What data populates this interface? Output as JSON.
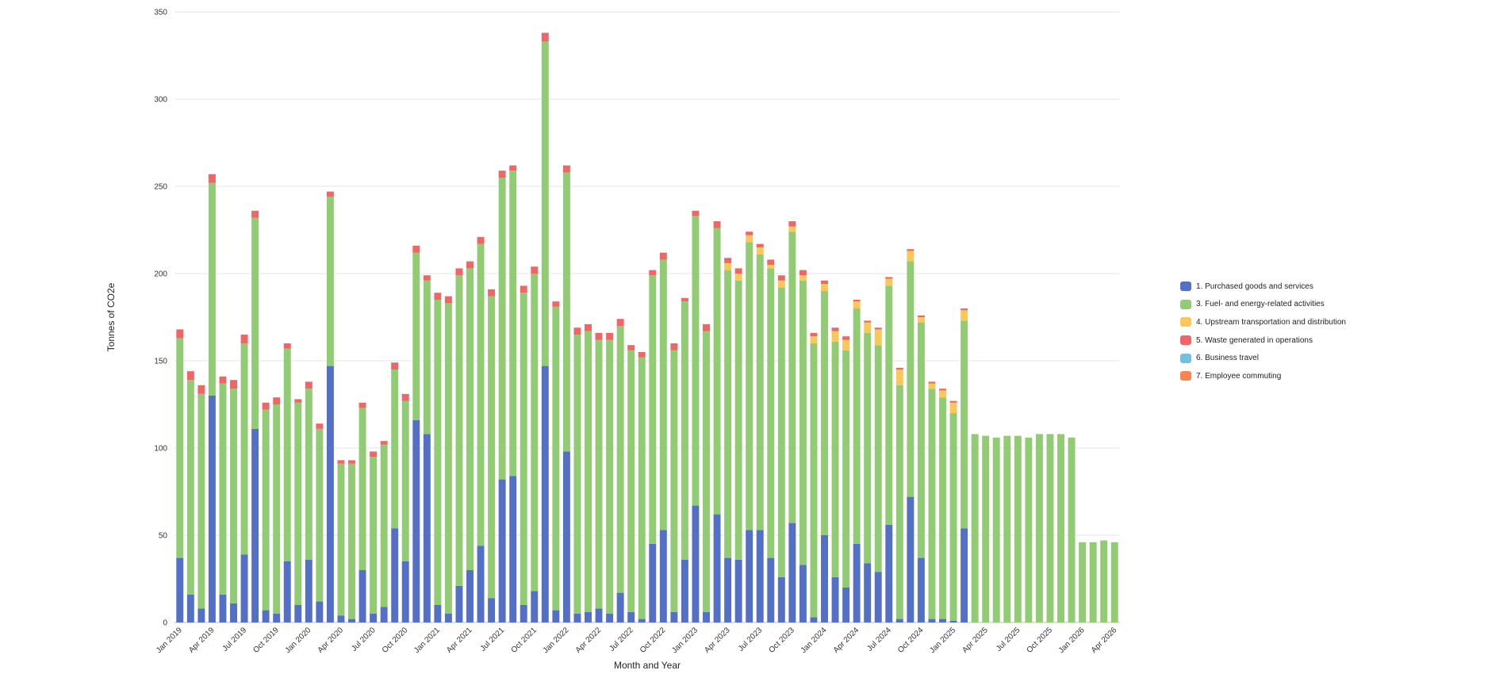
{
  "chart_data": {
    "type": "bar",
    "stacked": true,
    "title": "",
    "xlabel": "Month and Year",
    "ylabel": "Tonnes of CO2e",
    "ylim": [
      0,
      350
    ],
    "yticks": [
      0,
      50,
      100,
      150,
      200,
      250,
      300,
      350
    ],
    "grid": true,
    "legend_position": "right",
    "categories": [
      "Jan 2019",
      "Feb 2019",
      "Mar 2019",
      "Apr 2019",
      "May 2019",
      "Jun 2019",
      "Jul 2019",
      "Aug 2019",
      "Sep 2019",
      "Oct 2019",
      "Nov 2019",
      "Dec 2019",
      "Jan 2020",
      "Feb 2020",
      "Mar 2020",
      "Apr 2020",
      "May 2020",
      "Jun 2020",
      "Jul 2020",
      "Aug 2020",
      "Sep 2020",
      "Oct 2020",
      "Nov 2020",
      "Dec 2020",
      "Jan 2021",
      "Feb 2021",
      "Mar 2021",
      "Apr 2021",
      "May 2021",
      "Jun 2021",
      "Jul 2021",
      "Aug 2021",
      "Sep 2021",
      "Oct 2021",
      "Nov 2021",
      "Dec 2021",
      "Jan 2022",
      "Feb 2022",
      "Mar 2022",
      "Apr 2022",
      "May 2022",
      "Jun 2022",
      "Jul 2022",
      "Aug 2022",
      "Sep 2022",
      "Oct 2022",
      "Nov 2022",
      "Dec 2022",
      "Jan 2023",
      "Feb 2023",
      "Mar 2023",
      "Apr 2023",
      "May 2023",
      "Jun 2023",
      "Jul 2023",
      "Aug 2023",
      "Sep 2023",
      "Oct 2023",
      "Nov 2023",
      "Dec 2023",
      "Jan 2024",
      "Feb 2024",
      "Mar 2024",
      "Apr 2024",
      "May 2024",
      "Jun 2024",
      "Jul 2024",
      "Aug 2024",
      "Sep 2024",
      "Oct 2024",
      "Nov 2024",
      "Dec 2024",
      "Jan 2025",
      "Feb 2025",
      "Mar 2025",
      "Apr 2025",
      "May 2025",
      "Jun 2025",
      "Jul 2025",
      "Aug 2025",
      "Sep 2025",
      "Oct 2025",
      "Nov 2025",
      "Dec 2025",
      "Jan 2026",
      "Feb 2026",
      "Mar 2026",
      "Apr 2026"
    ],
    "x_tick_labels": [
      "Jan 2019",
      "Apr 2019",
      "Jul 2019",
      "Oct 2019",
      "Jan 2020",
      "Apr 2020",
      "Jul 2020",
      "Oct 2020",
      "Jan 2021",
      "Apr 2021",
      "Jul 2021",
      "Oct 2021",
      "Jan 2022",
      "Apr 2022",
      "Jul 2022",
      "Oct 2022",
      "Jan 2023",
      "Apr 2023",
      "Jul 2023",
      "Oct 2023",
      "Jan 2024",
      "Apr 2024",
      "Jul 2024",
      "Oct 2024",
      "Jan 2025",
      "Apr 2025",
      "Jul 2025",
      "Oct 2025",
      "Jan 2026",
      "Apr 2026"
    ],
    "series": [
      {
        "name": "1. Purchased goods and services",
        "color": "#5470c6",
        "values": [
          37,
          16,
          8,
          130,
          16,
          11,
          39,
          111,
          7,
          5,
          35,
          10,
          36,
          12,
          147,
          4,
          2,
          30,
          5,
          9,
          54,
          35,
          116,
          108,
          10,
          5,
          21,
          30,
          44,
          14,
          82,
          84,
          10,
          18,
          147,
          7,
          98,
          5,
          6,
          8,
          5,
          17,
          6,
          2,
          45,
          53,
          6,
          36,
          67,
          6,
          62,
          37,
          36,
          53,
          53,
          37,
          26,
          57,
          33,
          3,
          50,
          26,
          20,
          45,
          34,
          29,
          56,
          2,
          72,
          37,
          2,
          2,
          1,
          54,
          0,
          0,
          0,
          0,
          0,
          0,
          0,
          0,
          0,
          0,
          0,
          0,
          0,
          0
        ]
      },
      {
        "name": "3. Fuel- and energy-related activities",
        "color": "#91cc75",
        "values": [
          126,
          123,
          123,
          122,
          121,
          123,
          121,
          121,
          115,
          120,
          122,
          116,
          98,
          99,
          97,
          87,
          89,
          93,
          90,
          93,
          91,
          92,
          96,
          88,
          175,
          178,
          178,
          173,
          173,
          173,
          173,
          175,
          179,
          182,
          186,
          174,
          160,
          160,
          161,
          154,
          157,
          153,
          150,
          150,
          154,
          155,
          150,
          148,
          166,
          161,
          164,
          165,
          160,
          165,
          158,
          166,
          166,
          167,
          163,
          157,
          140,
          135,
          136,
          135,
          132,
          130,
          137,
          134,
          135,
          135,
          132,
          127,
          119,
          119,
          108,
          107,
          106,
          107,
          107,
          106,
          108,
          108,
          108,
          106,
          46,
          46,
          47,
          46
        ]
      },
      {
        "name": "4. Upstream transportation and distribution",
        "color": "#fac858",
        "values": [
          0,
          0,
          0,
          0,
          0,
          0,
          0,
          0,
          0,
          0,
          0,
          0,
          0,
          0,
          0,
          0,
          0,
          0,
          0,
          0,
          0,
          0,
          0,
          0,
          0,
          0,
          0,
          0,
          0,
          0,
          0,
          0,
          0,
          0,
          0,
          0,
          0,
          0,
          0,
          0,
          0,
          0,
          0,
          0,
          0,
          0,
          0,
          0,
          0,
          0,
          0,
          4,
          4,
          4,
          4,
          2,
          4,
          3,
          3,
          4,
          4,
          6,
          6,
          4,
          6,
          9,
          4,
          9,
          6,
          3,
          3,
          4,
          6,
          6,
          0,
          0,
          0,
          0,
          0,
          0,
          0,
          0,
          0,
          0,
          0,
          0,
          0,
          0
        ]
      },
      {
        "name": "5. Waste generated in operations",
        "color": "#ee6666",
        "values": [
          5,
          5,
          5,
          5,
          4,
          5,
          5,
          4,
          4,
          4,
          3,
          2,
          4,
          3,
          3,
          2,
          2,
          3,
          3,
          2,
          4,
          4,
          4,
          3,
          4,
          4,
          4,
          4,
          4,
          4,
          4,
          3,
          4,
          4,
          5,
          3,
          4,
          4,
          4,
          4,
          4,
          4,
          3,
          3,
          3,
          4,
          4,
          2,
          3,
          4,
          4,
          3,
          3,
          2,
          2,
          3,
          3,
          3,
          3,
          2,
          2,
          2,
          2,
          1,
          1,
          1,
          1,
          1,
          1,
          1,
          1,
          1,
          1,
          1,
          0,
          0,
          0,
          0,
          0,
          0,
          0,
          0,
          0,
          0,
          0,
          0,
          0,
          0
        ]
      },
      {
        "name": "6. Business travel",
        "color": "#73c0de",
        "values": [
          0,
          0,
          0,
          0,
          0,
          0,
          0,
          0,
          0,
          0,
          0,
          0,
          0,
          0,
          0,
          0,
          0,
          0,
          0,
          0,
          0,
          0,
          0,
          0,
          0,
          0,
          0,
          0,
          0,
          0,
          0,
          0,
          0,
          0,
          0,
          0,
          0,
          0,
          0,
          0,
          0,
          0,
          0,
          0,
          0,
          0,
          0,
          0,
          0,
          0,
          0,
          0,
          0,
          0,
          0,
          0,
          0,
          0,
          0,
          0,
          0,
          0,
          0,
          0,
          0,
          0,
          0,
          0,
          0,
          0,
          0,
          0,
          0,
          0,
          0,
          0,
          0,
          0,
          0,
          0,
          0,
          0,
          0,
          0,
          0,
          0,
          0,
          0
        ]
      },
      {
        "name": "7. Employee commuting",
        "color": "#fc8452",
        "values": [
          0,
          0,
          0,
          0,
          0,
          0,
          0,
          0,
          0,
          0,
          0,
          0,
          0,
          0,
          0,
          0,
          0,
          0,
          0,
          0,
          0,
          0,
          0,
          0,
          0,
          0,
          0,
          0,
          0,
          0,
          0,
          0,
          0,
          0,
          0,
          0,
          0,
          0,
          0,
          0,
          0,
          0,
          0,
          0,
          0,
          0,
          0,
          0,
          0,
          0,
          0,
          0,
          0,
          0,
          0,
          0,
          0,
          0,
          0,
          0,
          0,
          0,
          0,
          0,
          0,
          0,
          0,
          0,
          0,
          0,
          0,
          0,
          0,
          0,
          0,
          0,
          0,
          0,
          0,
          0,
          0,
          0,
          0,
          0,
          0,
          0,
          0,
          0
        ]
      }
    ]
  }
}
